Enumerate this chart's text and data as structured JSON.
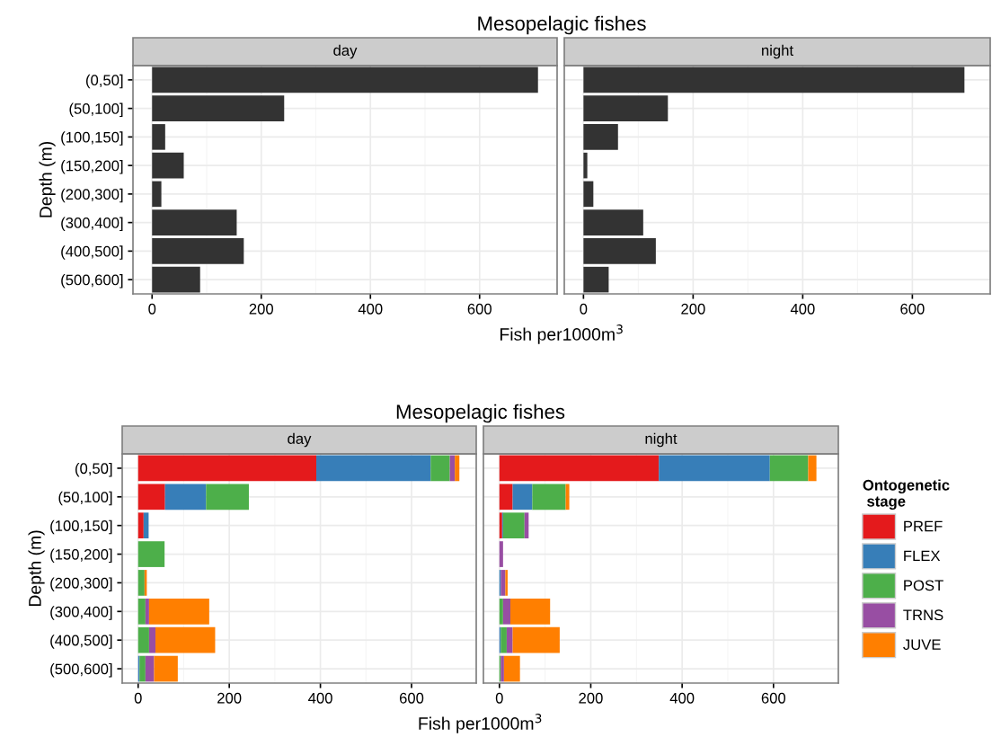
{
  "chart_data": [
    {
      "type": "bar",
      "orientation": "horizontal",
      "title": "Mesopelagic fishes",
      "subtitle": "day",
      "xlabel": "Fish per1000m$^{3}$",
      "ylabel": "Depth (m)",
      "categories": [
        "(0,50]",
        "(50,100]",
        "(100,150]",
        "(150,200]",
        "(200,300]",
        "(300,400]",
        "(400,500]",
        "(500,600]"
      ],
      "series": [
        {
          "color": "#333333",
          "values": [
            707,
            242,
            24,
            58,
            17,
            155,
            168,
            88
          ]
        }
      ],
      "xlim": [
        -35,
        742
      ],
      "xticks": [
        0,
        200,
        400,
        600
      ],
      "grid": true
    },
    {
      "type": "bar",
      "orientation": "horizontal",
      "subtitle": "night",
      "tick_labels": "x",
      "categories": [
        null,
        null,
        null,
        null,
        null,
        null,
        null,
        null
      ],
      "series": [
        {
          "color": "#333333",
          "values": [
            695,
            154,
            63,
            7,
            18,
            109,
            132,
            46
          ]
        }
      ],
      "xlim": [
        -35,
        742
      ],
      "xticks": [
        0,
        200,
        400,
        600
      ],
      "grid": true
    },
    {
      "type": "bar",
      "orientation": "horizontal",
      "stacked": true,
      "title": "Mesopelagic fishes",
      "subtitle": "day",
      "xlabel": "Fish per1000m$^{3}$",
      "ylabel": "Depth (m)",
      "categories": [
        "(0,50]",
        "(50,100]",
        "(100,150]",
        "(150,200]",
        "(200,300]",
        "(300,400]",
        "(400,500]",
        "(500,600]"
      ],
      "series": [
        {
          "color": "#e41a1c",
          "values": [
            391,
            59,
            12,
            0,
            0,
            0,
            0,
            0
          ]
        },
        {
          "color": "#377eb8",
          "values": [
            251,
            90,
            11,
            0,
            0,
            0,
            0,
            3
          ]
        },
        {
          "color": "#4daf4a",
          "values": [
            42,
            94,
            0,
            58,
            14,
            16,
            24,
            13
          ]
        },
        {
          "color": "#984ea3",
          "values": [
            11,
            0,
            0,
            0,
            0,
            8,
            14,
            19
          ]
        },
        {
          "color": "#ff7f00",
          "values": [
            10,
            0,
            0,
            0,
            5,
            132,
            131,
            52
          ]
        }
      ],
      "xlim": [
        -35,
        742
      ],
      "xticks": [
        0,
        200,
        400,
        600
      ],
      "grid": true
    },
    {
      "type": "bar",
      "orientation": "horizontal",
      "stacked": true,
      "subtitle": "night",
      "tick_labels": "x",
      "legend": "right",
      "legend_title": "Ontogenetic\n stage",
      "categories": [
        null,
        null,
        null,
        null,
        null,
        null,
        null,
        null
      ],
      "series": [
        {
          "name": "PREF",
          "color": "#e41a1c",
          "values": [
            349,
            29,
            6,
            0,
            0,
            0,
            0,
            0
          ]
        },
        {
          "name": "FLEX",
          "color": "#377eb8",
          "values": [
            243,
            43,
            2,
            0,
            3,
            0,
            3,
            0
          ]
        },
        {
          "name": "POST",
          "color": "#4daf4a",
          "values": [
            84,
            73,
            47,
            0,
            0,
            8,
            13,
            3
          ]
        },
        {
          "name": "TRNS",
          "color": "#984ea3",
          "values": [
            0,
            0,
            9,
            8,
            10,
            16,
            13,
            7
          ]
        },
        {
          "name": "JUVE",
          "color": "#ff7f00",
          "values": [
            18,
            8,
            0,
            0,
            5,
            87,
            103,
            35
          ]
        }
      ],
      "xlim": [
        -35,
        742
      ],
      "xticks": [
        0,
        200,
        400,
        600
      ],
      "grid": true
    }
  ]
}
